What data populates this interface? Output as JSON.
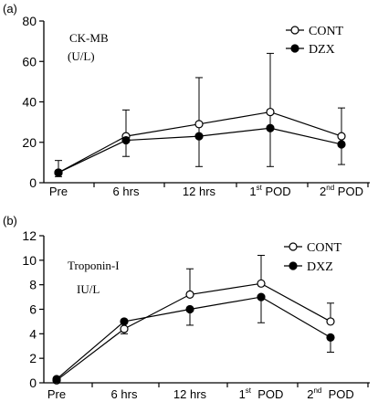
{
  "chart_data": [
    {
      "type": "line",
      "panel_label": "(a)",
      "annotation": [
        "CK-MB",
        "(U/L)"
      ],
      "categories": [
        {
          "main": "Pre",
          "sup": "",
          "tail": ""
        },
        {
          "main": "6 hrs",
          "sup": "",
          "tail": ""
        },
        {
          "main": "12 hrs",
          "sup": "",
          "tail": ""
        },
        {
          "main": "1",
          "sup": "st",
          "tail": " POD"
        },
        {
          "main": "2",
          "sup": "nd",
          "tail": " POD"
        }
      ],
      "ylim": [
        0,
        80
      ],
      "yticks": [
        0,
        20,
        40,
        60,
        80
      ],
      "series": [
        {
          "name": "CONT",
          "marker": "open-circle",
          "values": [
            5,
            23,
            29,
            35,
            23
          ],
          "err_upper": [
            11,
            36,
            52,
            64,
            37
          ],
          "err_lower": [
            null,
            13,
            8,
            8,
            9
          ]
        },
        {
          "name": "DZX",
          "marker": "filled-circle",
          "values": [
            5,
            21,
            23,
            27,
            19
          ],
          "err_upper": [
            null,
            null,
            null,
            null,
            null
          ],
          "err_lower": [
            3,
            null,
            null,
            null,
            null
          ]
        }
      ],
      "legend_position": "top-right",
      "grid": false
    },
    {
      "type": "line",
      "panel_label": "(b)",
      "annotation": [
        "Troponin-I",
        "IU/L"
      ],
      "categories": [
        {
          "main": "Pre",
          "sup": "",
          "tail": ""
        },
        {
          "main": "6 hrs",
          "sup": "",
          "tail": ""
        },
        {
          "main": "12 hrs",
          "sup": "",
          "tail": ""
        },
        {
          "main": "1",
          "sup": "st",
          "tail": "  POD"
        },
        {
          "main": "2",
          "sup": "nd",
          "tail": "  POD"
        }
      ],
      "ylim": [
        0,
        12
      ],
      "yticks": [
        0,
        2,
        4,
        6,
        8,
        10,
        12
      ],
      "series": [
        {
          "name": "CONT",
          "marker": "open-circle",
          "values": [
            0.2,
            4.4,
            7.2,
            8.1,
            5.0
          ],
          "err_upper": [
            null,
            null,
            9.3,
            10.4,
            6.5
          ],
          "err_lower": [
            null,
            4.0,
            null,
            null,
            null
          ]
        },
        {
          "name": "DXZ",
          "marker": "filled-circle",
          "values": [
            0.3,
            5.0,
            6.0,
            7.0,
            3.7
          ],
          "err_upper": [
            null,
            null,
            null,
            null,
            null
          ],
          "err_lower": [
            0.0,
            null,
            4.7,
            4.9,
            2.5
          ]
        }
      ],
      "legend_position": "top-right",
      "grid": false
    }
  ]
}
